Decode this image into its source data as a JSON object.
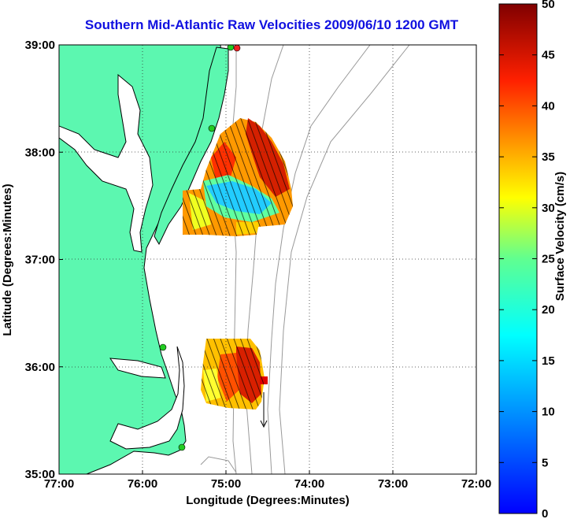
{
  "title": "Southern Mid-Atlantic Raw Velocities 2009/06/10 1200 GMT",
  "map": {
    "xlabel": "Longitude (Degrees:Minutes)",
    "ylabel": "Latitude (Degrees:Minutes)",
    "x_ticks": [
      "77:00",
      "76:00",
      "75:00",
      "74:00",
      "73:00",
      "72:00"
    ],
    "y_ticks": [
      "39:00",
      "38:00",
      "37:00",
      "36:00",
      "35:00"
    ],
    "lon_range": [
      -77,
      -72
    ],
    "lat_range": [
      35,
      39
    ],
    "land_color": "#5cf7b0",
    "water_color": "#ffffff",
    "grid": "dotted",
    "stations": [
      {
        "lon": -75.2,
        "lat": 38.25,
        "color": "#22cc22"
      },
      {
        "lon": -75.65,
        "lat": 36.2,
        "color": "#22cc22"
      },
      {
        "lon": -75.55,
        "lat": 35.25,
        "color": "#22cc22"
      },
      {
        "lon": -74.9,
        "lat": 39.02,
        "color": "#22cc22"
      },
      {
        "lon": -74.82,
        "lat": 39.02,
        "color": "#ee2222"
      }
    ]
  },
  "colorbar": {
    "label": "Surface Velocity (cm/s)",
    "ticks": [
      "0",
      "5",
      "10",
      "15",
      "20",
      "25",
      "30",
      "35",
      "40",
      "45",
      "50"
    ],
    "min": 0,
    "max": 50,
    "colormap": "jet"
  }
}
